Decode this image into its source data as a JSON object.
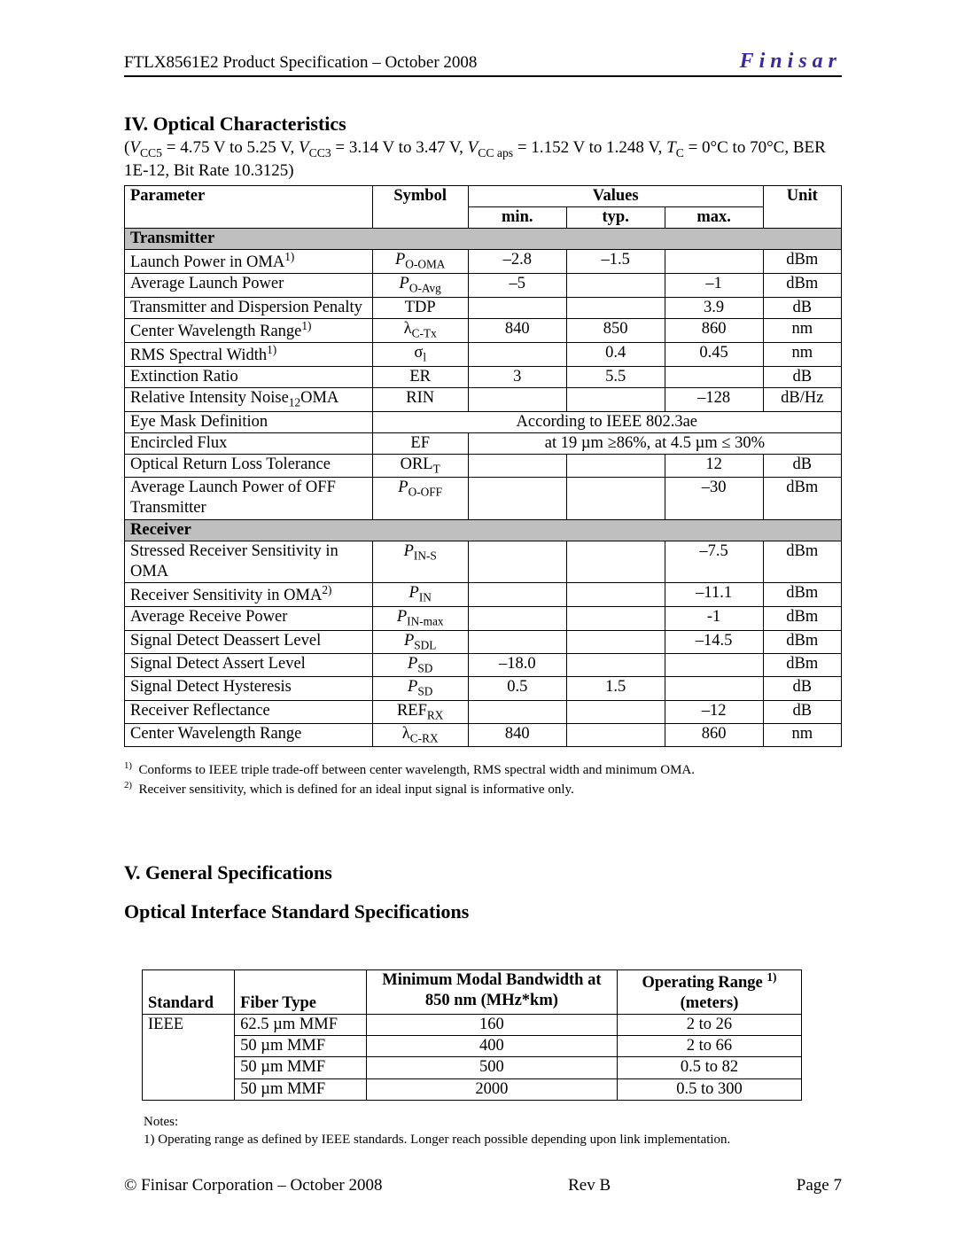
{
  "header": {
    "left": "FTLX8561E2 Product Specification – October 2008",
    "brand": "Finisar"
  },
  "footer": {
    "left": "© Finisar Corporation – October 2008",
    "center": "Rev B",
    "right": "Page 7"
  },
  "section4": {
    "title": "IV. Optical Characteristics",
    "conditions_prefix": "(",
    "conditions_html": "V<CC5> = 4.75 V to 5.25 V, V<CC3> = 3.14 V to 3.47 V, V<CC aps> = 1.152 V to 1.248 V, T<C> = 0°C to 70°C, BER 1E-12, Bit Rate 10.3125)",
    "table": {
      "columns": {
        "parameter": "Parameter",
        "symbol": "Symbol",
        "values": "Values",
        "min": "min.",
        "typ": "typ.",
        "max": "max.",
        "unit": "Unit"
      },
      "section_tx": "Transmitter",
      "section_rx": "Receiver",
      "rows_tx": [
        {
          "param": "Launch Power in OMA",
          "param_sup": "1)",
          "sym": "P",
          "sym_sub": "O-OMA",
          "sym_italic": true,
          "min": "–2.8",
          "typ": "–1.5",
          "max": "",
          "unit": "dBm"
        },
        {
          "param": "Average Launch Power",
          "sym": "P",
          "sym_sub": "O-Avg",
          "sym_italic": true,
          "min": "–5",
          "typ": "",
          "max": "–1",
          "unit": "dBm"
        },
        {
          "param": "Transmitter and Dispersion Penalty",
          "sym": "TDP",
          "min": "",
          "typ": "",
          "max": "3.9",
          "unit": "dB"
        },
        {
          "param": "Center Wavelength Range",
          "param_sup": "1)",
          "sym": "λ",
          "sym_sub": "C-Tx",
          "min": "840",
          "typ": "850",
          "max": "860",
          "unit": "nm"
        },
        {
          "param": "RMS Spectral Width",
          "param_sup": "1)",
          "sym": "σ",
          "sym_sub": "l",
          "min": "",
          "typ": "0.4",
          "max": "0.45",
          "unit": "nm"
        },
        {
          "param": "Extinction Ratio",
          "sym": "ER",
          "min": "3",
          "typ": "5.5",
          "max": "",
          "unit": "dB"
        },
        {
          "param": "Relative Intensity Noise",
          "param_sub": "12",
          "param_tail": "OMA",
          "sym": "RIN",
          "min": "",
          "typ": "",
          "max": "–128",
          "unit": "dB/Hz"
        },
        {
          "param": "Eye Mask Definition",
          "span5": "According to IEEE 802.3ae"
        },
        {
          "param": "Encircled Flux",
          "sym": "EF",
          "span4": "at 19 µm ≥86%, at 4.5 µm ≤ 30%"
        },
        {
          "param": "Optical Return Loss Tolerance",
          "sym": "ORL",
          "sym_sub": "T",
          "min": "",
          "typ": "",
          "max": "12",
          "unit": "dB"
        },
        {
          "param": "Average Launch Power of OFF Transmitter",
          "sym": "P",
          "sym_sub": "O-OFF",
          "sym_italic": true,
          "min": "",
          "typ": "",
          "max": "–30",
          "unit": "dBm"
        }
      ],
      "rows_rx": [
        {
          "param": "Stressed Receiver Sensitivity in OMA",
          "sym": "P",
          "sym_sub": "IN-S",
          "sym_italic": true,
          "min": "",
          "typ": "",
          "max": "–7.5",
          "unit": "dBm"
        },
        {
          "param": "Receiver Sensitivity in OMA",
          "param_sup": "2)",
          "sym": "P",
          "sym_sub": "IN",
          "sym_italic": true,
          "min": "",
          "typ": "",
          "max": "–11.1",
          "unit": "dBm"
        },
        {
          "param": "Average Receive Power",
          "sym": "P",
          "sym_sub": "IN-max",
          "sym_italic": true,
          "min": "",
          "typ": "",
          "max": "-1",
          "unit": "dBm"
        },
        {
          "param": "Signal Detect Deassert Level",
          "sym": "P",
          "sym_sub": "SDL",
          "sym_italic": true,
          "min": "",
          "typ": "",
          "max": "–14.5",
          "unit": "dBm"
        },
        {
          "param": "Signal Detect Assert Level",
          "sym": "P",
          "sym_sub": "SD",
          "sym_italic": true,
          "min": "–18.0",
          "typ": "",
          "max": "",
          "unit": "dBm"
        },
        {
          "param": "Signal Detect Hysteresis",
          "sym": "P",
          "sym_sub": "SD",
          "sym_italic": true,
          "min": "0.5",
          "typ": "1.5",
          "max": "",
          "unit": "dB"
        },
        {
          "param": "Receiver Reflectance",
          "sym": "REF",
          "sym_sub": "RX",
          "min": "",
          "typ": "",
          "max": "–12",
          "unit": "dB"
        },
        {
          "param": "Center Wavelength Range",
          "sym": "λ",
          "sym_sub": "C-RX",
          "min": "840",
          "typ": "",
          "max": "860",
          "unit": "nm"
        }
      ]
    },
    "footnotes": [
      "1)  Conforms to IEEE triple trade-off between center wavelength, RMS spectral width and minimum OMA.",
      "2)  Receiver sensitivity, which is defined for an ideal input signal is informative only."
    ]
  },
  "section5": {
    "title": "V. General Specifications",
    "subtitle": "Optical Interface Standard Specifications",
    "table": {
      "columns": {
        "standard": "Standard",
        "fiber": "Fiber Type",
        "bw": "Minimum Modal Bandwidth at 850 nm (MHz*km)",
        "range": "Operating Range",
        "range_sup": "1)",
        "range_unit": "(meters)"
      },
      "rows": [
        {
          "standard": "IEEE",
          "fiber": "62.5 µm MMF",
          "bw": "160",
          "range": "2 to 26"
        },
        {
          "standard": "",
          "fiber": "50 µm MMF",
          "bw": "400",
          "range": "2 to 66"
        },
        {
          "standard": "",
          "fiber": "50 µm MMF",
          "bw": "500",
          "range": "0.5 to 82"
        },
        {
          "standard": "",
          "fiber": "50 µm MMF",
          "bw": "2000",
          "range": "0.5 to 300"
        }
      ]
    },
    "notes_label": "Notes:",
    "notes": [
      "1) Operating range as defined by IEEE standards. Longer reach possible depending upon link implementation."
    ]
  },
  "colors": {
    "brand": "#3a2a9c",
    "section_bg": "#bfbfbf",
    "rule": "#000000"
  }
}
